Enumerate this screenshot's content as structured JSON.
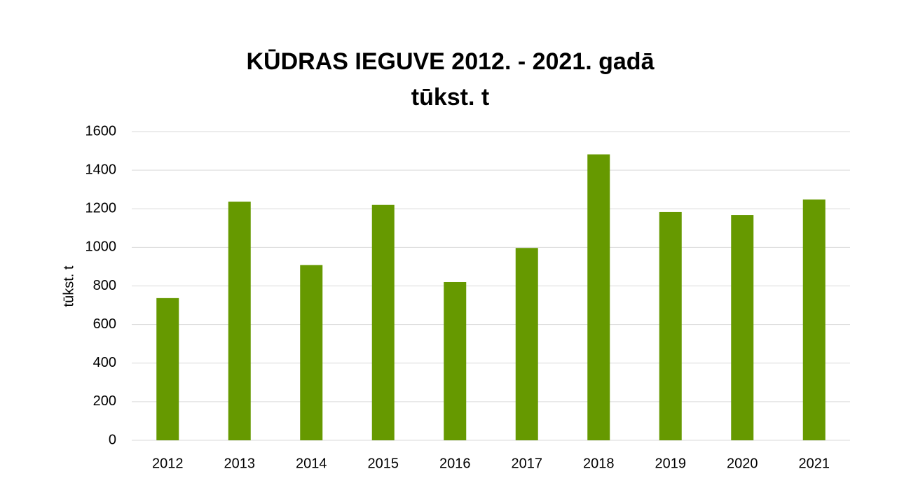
{
  "chart_data": {
    "type": "bar",
    "title": "KŪDRAS IEGUVE 2012. - 2021. gadā",
    "subtitle": "tūkst. t",
    "xlabel": "",
    "ylabel": "tūkst. t",
    "categories": [
      "2012",
      "2013",
      "2014",
      "2015",
      "2016",
      "2017",
      "2018",
      "2019",
      "2020",
      "2021"
    ],
    "values": [
      737,
      1237,
      908,
      1220,
      820,
      997,
      1482,
      1183,
      1168,
      1248
    ],
    "ylim": [
      0,
      1600
    ],
    "yticks": [
      0,
      200,
      400,
      600,
      800,
      1000,
      1200,
      1400,
      1600
    ],
    "grid": true,
    "legend": "none",
    "bar_color": "#669900",
    "grid_color": "#d9d9d9"
  }
}
